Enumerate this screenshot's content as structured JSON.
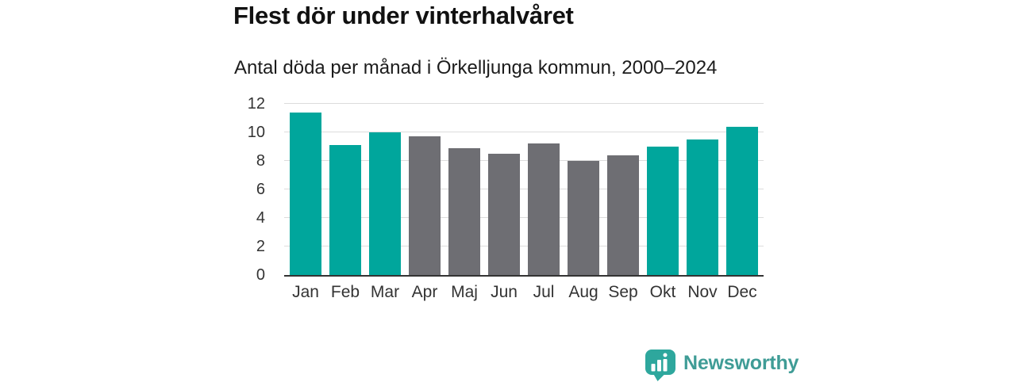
{
  "title": "Flest dör under vinterhalvåret",
  "subtitle": "Antal döda per månad i Örkelljunga kommun, 2000–2024",
  "chart_data": {
    "type": "bar",
    "categories": [
      "Jan",
      "Feb",
      "Mar",
      "Apr",
      "Maj",
      "Jun",
      "Jul",
      "Aug",
      "Sep",
      "Okt",
      "Nov",
      "Dec"
    ],
    "values": [
      11.4,
      9.1,
      10.0,
      9.7,
      8.9,
      8.5,
      9.2,
      8.0,
      8.4,
      9.0,
      9.5,
      10.4
    ],
    "bar_colors": [
      "#00A69C",
      "#00A69C",
      "#00A69C",
      "#6E6E73",
      "#6E6E73",
      "#6E6E73",
      "#6E6E73",
      "#6E6E73",
      "#6E6E73",
      "#00A69C",
      "#00A69C",
      "#00A69C"
    ],
    "title": "Flest dör under vinterhalvåret",
    "subtitle": "Antal döda per månad i Örkelljunga kommun, 2000–2024",
    "xlabel": "",
    "ylabel": "",
    "ylim": [
      0,
      12
    ],
    "yticks": [
      0,
      2,
      4,
      6,
      8,
      10,
      12
    ],
    "grid": true,
    "legend_position": "none",
    "highlight_color": "#00A69C",
    "muted_color": "#6E6E73"
  },
  "branding": {
    "label": "Newsworthy",
    "icon": "newsworthy-logo-icon",
    "text_color": "#3F9C96",
    "icon_color": "#2EA79D"
  },
  "style_colors": {
    "grid": "#DCDCDC",
    "axis": "#333333",
    "text": "#333333"
  }
}
